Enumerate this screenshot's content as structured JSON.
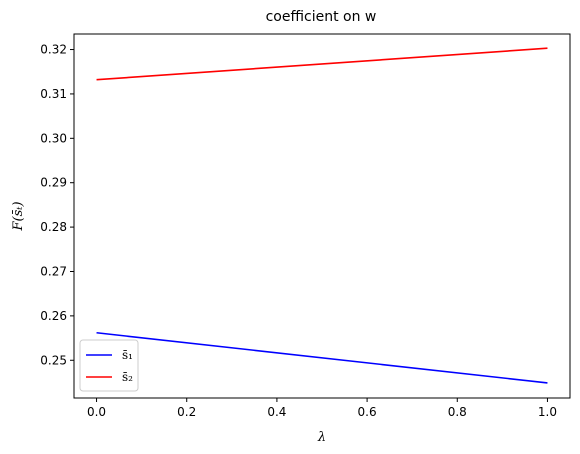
{
  "chart_data": {
    "type": "line",
    "title": "coefficient on w",
    "xlabel": "λ",
    "ylabel": "F(s̄ₜ)",
    "xlim": [
      -0.05,
      1.05
    ],
    "ylim": [
      0.2415,
      0.3235
    ],
    "xticks": [
      0.0,
      0.2,
      0.4,
      0.6,
      0.8,
      1.0
    ],
    "xtick_labels": [
      "0.0",
      "0.2",
      "0.4",
      "0.6",
      "0.8",
      "1.0"
    ],
    "yticks": [
      0.25,
      0.26,
      0.27,
      0.28,
      0.29,
      0.3,
      0.31,
      0.32
    ],
    "ytick_labels": [
      "0.25",
      "0.26",
      "0.27",
      "0.28",
      "0.29",
      "0.30",
      "0.31",
      "0.32"
    ],
    "grid": false,
    "legend_position": "lower-left",
    "series": [
      {
        "name": "s̄₁",
        "color": "#0000ff",
        "x": [
          0.0,
          1.0
        ],
        "y": [
          0.2562,
          0.2449
        ]
      },
      {
        "name": "s̄₂",
        "color": "#ff0000",
        "x": [
          0.0,
          1.0
        ],
        "y": [
          0.3132,
          0.3203
        ]
      }
    ]
  }
}
